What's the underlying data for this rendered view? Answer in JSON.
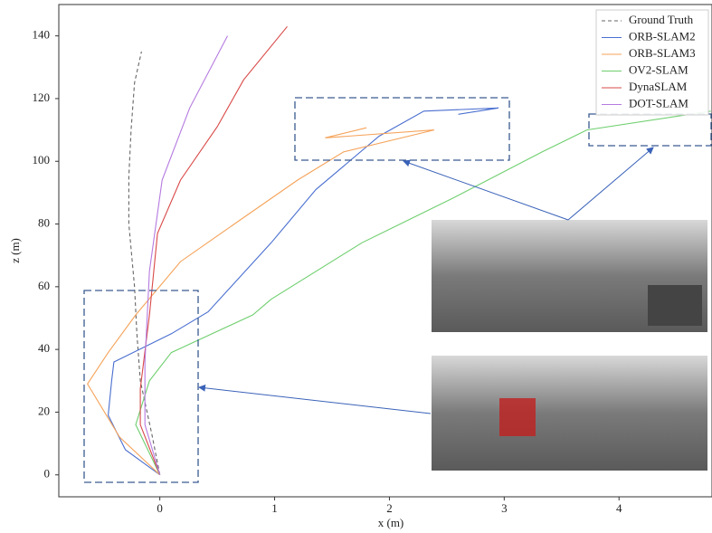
{
  "chart_data": {
    "type": "line",
    "x_label": "x (m)",
    "y_label": "z (m)",
    "xlim": [
      -0.88,
      4.81
    ],
    "ylim": [
      -7,
      150
    ],
    "xticks": [
      0,
      1,
      2,
      3,
      4
    ],
    "yticks": [
      0,
      20,
      40,
      60,
      80,
      100,
      120,
      140
    ],
    "legend": "upper right",
    "series": [
      {
        "name": "Ground Truth",
        "color": "#666666",
        "linestyle": "dashed",
        "x": [
          0,
          -0.07,
          -0.17,
          -0.2,
          -0.22,
          -0.27,
          -0.27,
          -0.25,
          -0.22,
          -0.16
        ],
        "values": [
          0,
          13,
          30,
          45,
          60,
          80,
          95,
          110,
          125,
          135
        ]
      },
      {
        "name": "ORB-SLAM2",
        "color": "#4a6fd0",
        "linestyle": "solid",
        "x": [
          0,
          -0.3,
          -0.45,
          -0.42,
          -0.4,
          0.1,
          0.42,
          0.97,
          1.36,
          1.91,
          2.3,
          2.95,
          2.6
        ],
        "values": [
          0,
          8,
          19,
          30,
          36,
          45,
          52,
          74,
          91,
          108,
          116,
          117,
          115
        ]
      },
      {
        "name": "ORB-SLAM3",
        "color": "#f5a35a",
        "linestyle": "solid",
        "x": [
          0,
          -0.35,
          -0.63,
          -0.45,
          -0.21,
          0.18,
          0.65,
          1.2,
          1.6,
          2.39,
          1.44,
          1.8
        ],
        "values": [
          0,
          12,
          29,
          39,
          51,
          68,
          80,
          94,
          103,
          110,
          107.5,
          110.7
        ]
      },
      {
        "name": "OV2-SLAM",
        "color": "#6fcf6f",
        "linestyle": "solid",
        "x": [
          0,
          -0.21,
          -0.09,
          0.1,
          0.81,
          0.97,
          1.76,
          2.54,
          3.33,
          3.72,
          4.8
        ],
        "values": [
          0,
          16,
          30,
          39,
          51,
          56,
          74,
          88,
          103,
          110,
          116
        ]
      },
      {
        "name": "DynaSLAM",
        "color": "#d94848",
        "linestyle": "solid",
        "x": [
          0,
          -0.17,
          -0.17,
          -0.09,
          -0.02,
          0.18,
          0.5,
          0.73,
          1.11
        ],
        "values": [
          0,
          16,
          27.5,
          51,
          77,
          94,
          111,
          126,
          143
        ]
      },
      {
        "name": "DOT-SLAM",
        "color": "#b57ae0",
        "linestyle": "solid",
        "x": [
          0,
          -0.13,
          -0.13,
          -0.09,
          0.02,
          0.26,
          0.59
        ],
        "values": [
          0,
          16,
          36,
          65,
          94,
          117,
          140
        ]
      }
    ]
  }
}
